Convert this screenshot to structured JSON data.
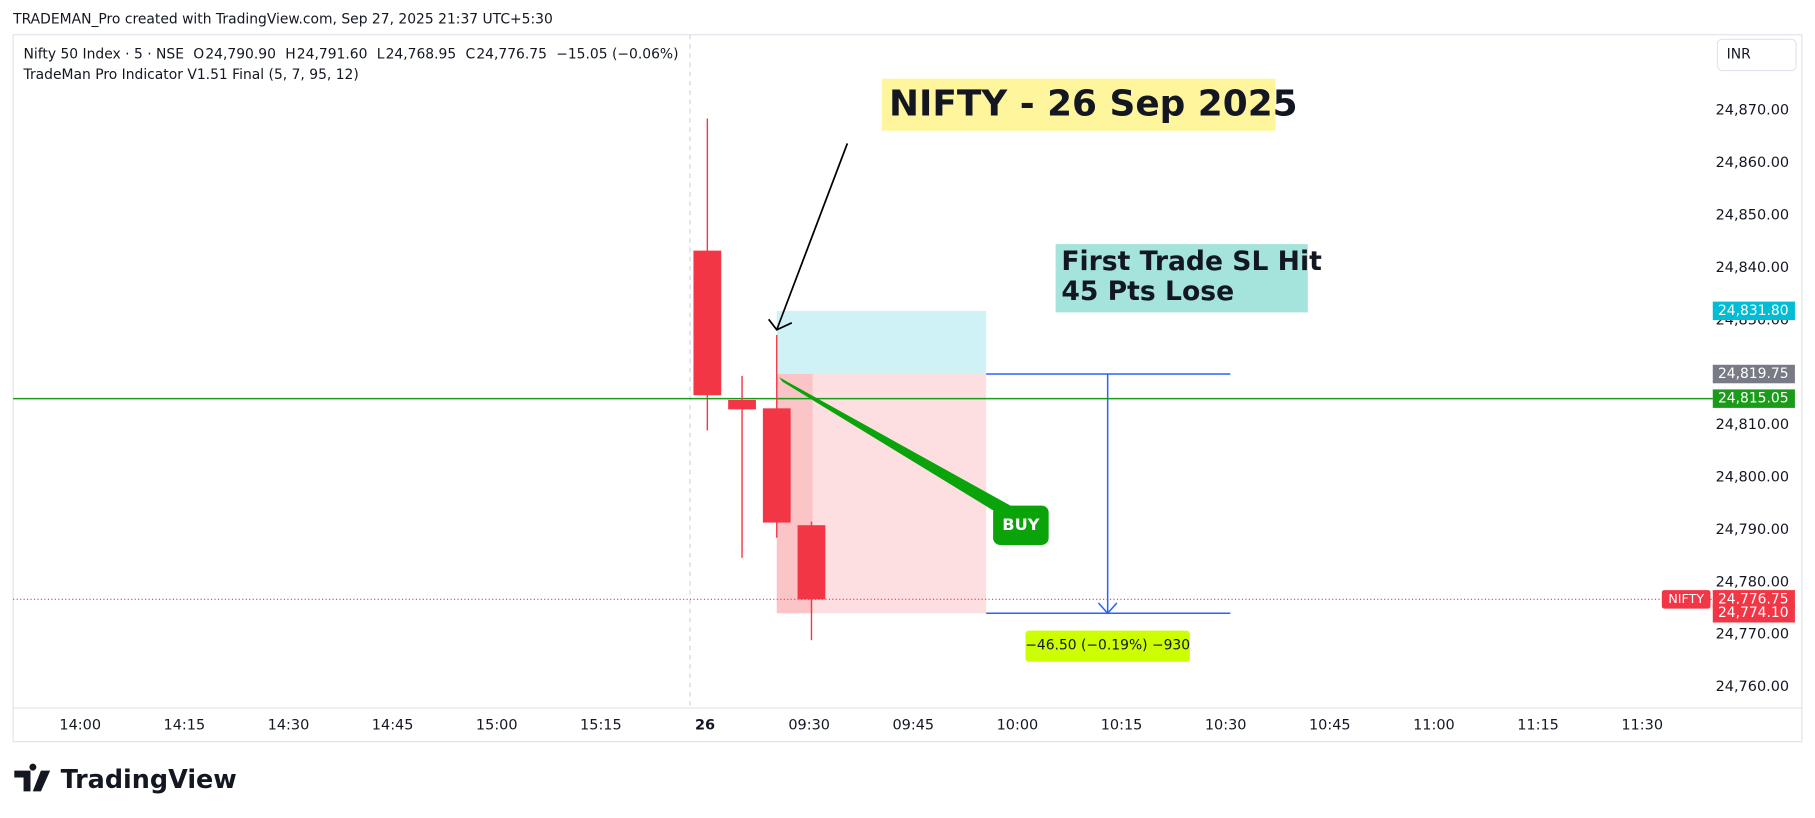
{
  "header": {
    "credit": "TRADEMAN_Pro created with TradingView.com, Sep 27, 2025 21:37 UTC+5:30",
    "brand": "TradingView",
    "currency": "INR"
  },
  "chart_data": {
    "type": "candlestick",
    "symbol": "Nifty 50 Index · 5 · NSE",
    "legend_fields": [
      {
        "key": "O",
        "label": "24,790.90"
      },
      {
        "key": "H",
        "label": "24,791.60"
      },
      {
        "key": "L",
        "label": "24,768.95"
      },
      {
        "key": "C",
        "label": "24,776.75"
      }
    ],
    "change": "−15.05 (−0.06%)",
    "indicator": "TradeMan Pro Indicator V1.51 Final (5, 7, 95, 12)",
    "title": "NIFTY - 26 Sep 2025",
    "note": [
      "First Trade SL Hit",
      "45 Pts Lose"
    ],
    "signal": "BUY",
    "measure_label": "−46.50 (−0.19%) −930",
    "x": [
      "09:15",
      "09:20",
      "09:25",
      "09:30"
    ],
    "open": [
      24843.3,
      24814.8,
      24813.2,
      24790.9
    ],
    "high": [
      24868.5,
      24819.4,
      24827.2,
      24791.6
    ],
    "low": [
      24809.0,
      24784.7,
      24788.5,
      24768.95
    ],
    "close": [
      24815.7,
      24813.0,
      24791.4,
      24776.75
    ],
    "up_color": "#089981",
    "down_color": "#f23645",
    "xtick_labels": [
      "14:00",
      "14:15",
      "14:30",
      "14:45",
      "15:00",
      "15:15",
      "26",
      "09:30",
      "09:45",
      "10:00",
      "10:15",
      "10:30",
      "10:45",
      "11:00",
      "11:15",
      "11:30"
    ],
    "ylim": [
      24756,
      24884.5
    ],
    "yticks": [
      {
        "value": 24760,
        "label": "24,760.00"
      },
      {
        "value": 24770,
        "label": "24,770.00"
      },
      {
        "value": 24780,
        "label": "24,780.00"
      },
      {
        "value": 24790,
        "label": "24,790.00"
      },
      {
        "value": 24800,
        "label": "24,800.00"
      },
      {
        "value": 24810,
        "label": "24,810.00"
      },
      {
        "value": 24820,
        "label": "24,820.00"
      },
      {
        "value": 24830,
        "label": "24,830.00"
      },
      {
        "value": 24840,
        "label": "24,840.00"
      },
      {
        "value": 24850,
        "label": "24,850.00"
      },
      {
        "value": 24860,
        "label": "24,860.00"
      },
      {
        "value": 24870,
        "label": "24,870.00"
      }
    ],
    "price_lines": [
      {
        "value": 24815.05,
        "label": "24,815.05",
        "color": "#1a9c1a",
        "style": "solid"
      },
      {
        "value": 24776.75,
        "label": "24,776.75",
        "name": "NIFTY",
        "color": "#f23645",
        "style": "dotted"
      }
    ],
    "position": {
      "target": {
        "value": 24831.8,
        "label": "24,831.80"
      },
      "entry": {
        "value": 24819.75,
        "label": "24,819.75"
      },
      "stop": {
        "value": 24774.1,
        "label": "24,774.10"
      }
    }
  }
}
